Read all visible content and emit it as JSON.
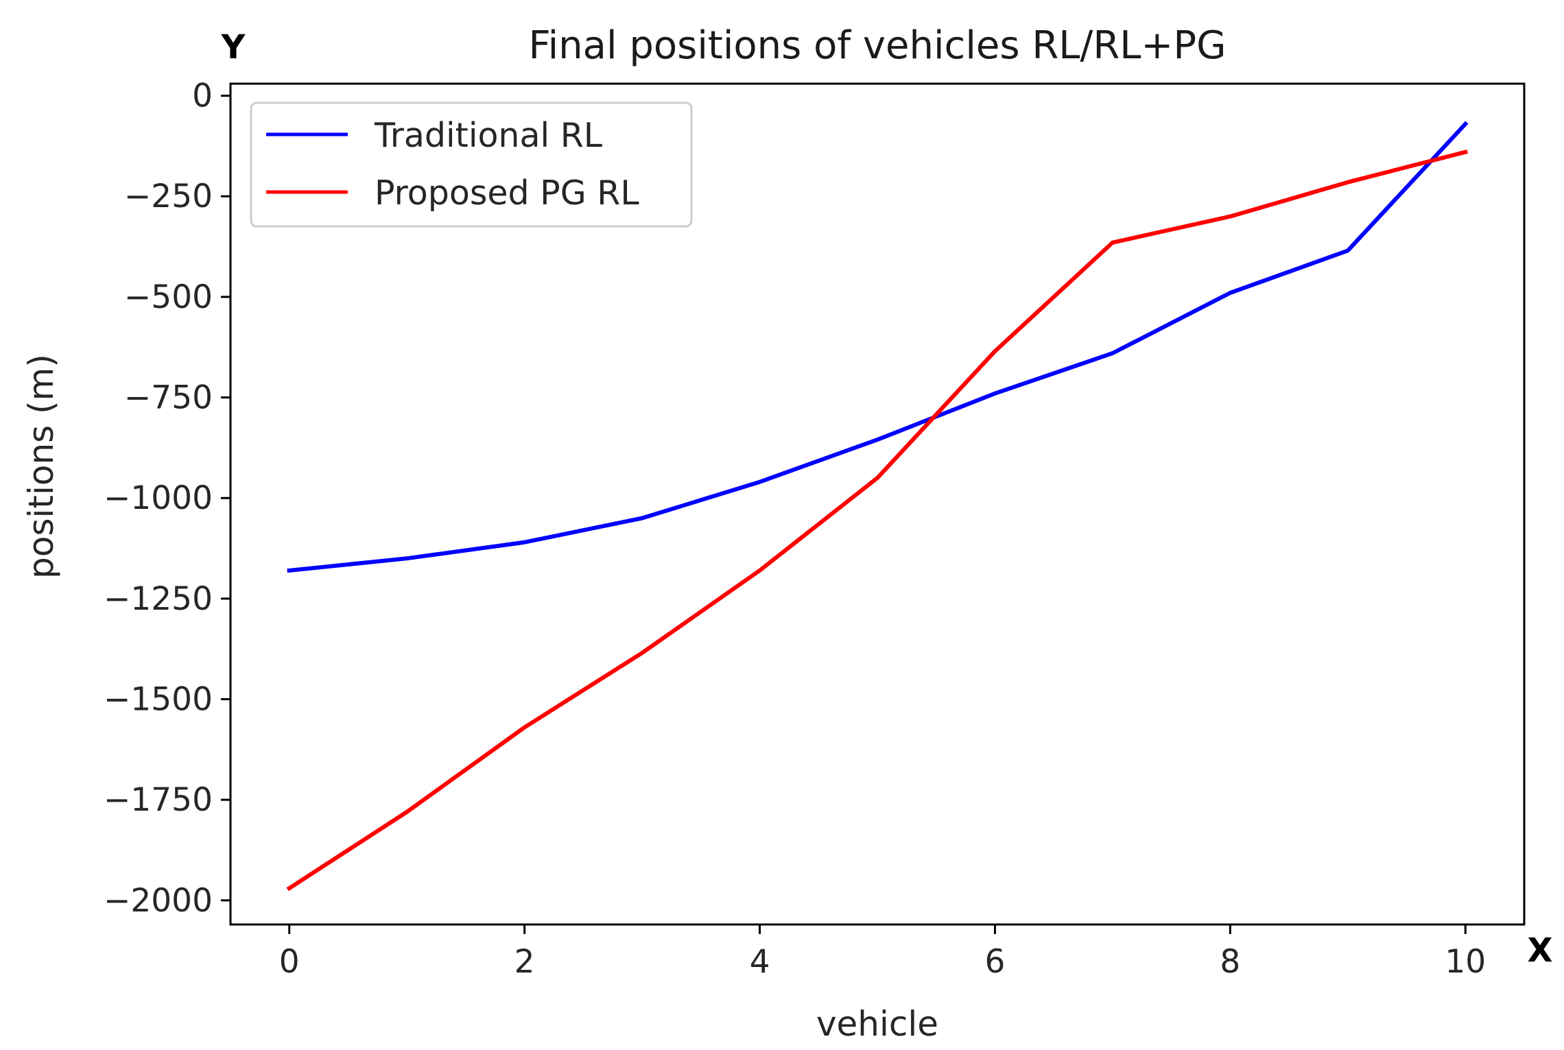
{
  "chart_data": {
    "type": "line",
    "title": "Final positions of vehicles RL/RL+PG",
    "xlabel": "vehicle",
    "ylabel": "positions  (m)",
    "x_corner_label": "X",
    "y_corner_label": "Y",
    "x": [
      0,
      1,
      2,
      3,
      4,
      5,
      6,
      7,
      8,
      9,
      10
    ],
    "xlim": [
      -0.5,
      10.5
    ],
    "ylim": [
      -2060,
      30
    ],
    "xticks": [
      0,
      2,
      4,
      6,
      8,
      10
    ],
    "yticks": [
      0,
      -250,
      -500,
      -750,
      -1000,
      -1250,
      -1500,
      -1750,
      -2000
    ],
    "xtick_labels": [
      "0",
      "2",
      "4",
      "6",
      "8",
      "10"
    ],
    "ytick_labels": [
      "0",
      "−250",
      "−500",
      "−750",
      "−1000",
      "−1250",
      "−1500",
      "−1750",
      "−2000"
    ],
    "grid": false,
    "legend_position": "top-left",
    "series": [
      {
        "name": "Traditional RL",
        "color": "#0000ff",
        "values": [
          -1180,
          -1150,
          -1110,
          -1050,
          -960,
          -855,
          -740,
          -640,
          -490,
          -385,
          -70
        ]
      },
      {
        "name": "Proposed PG RL",
        "color": "#ff0000",
        "values": [
          -1970,
          -1780,
          -1570,
          -1385,
          -1180,
          -950,
          -635,
          -365,
          -300,
          -215,
          -140
        ]
      }
    ]
  }
}
